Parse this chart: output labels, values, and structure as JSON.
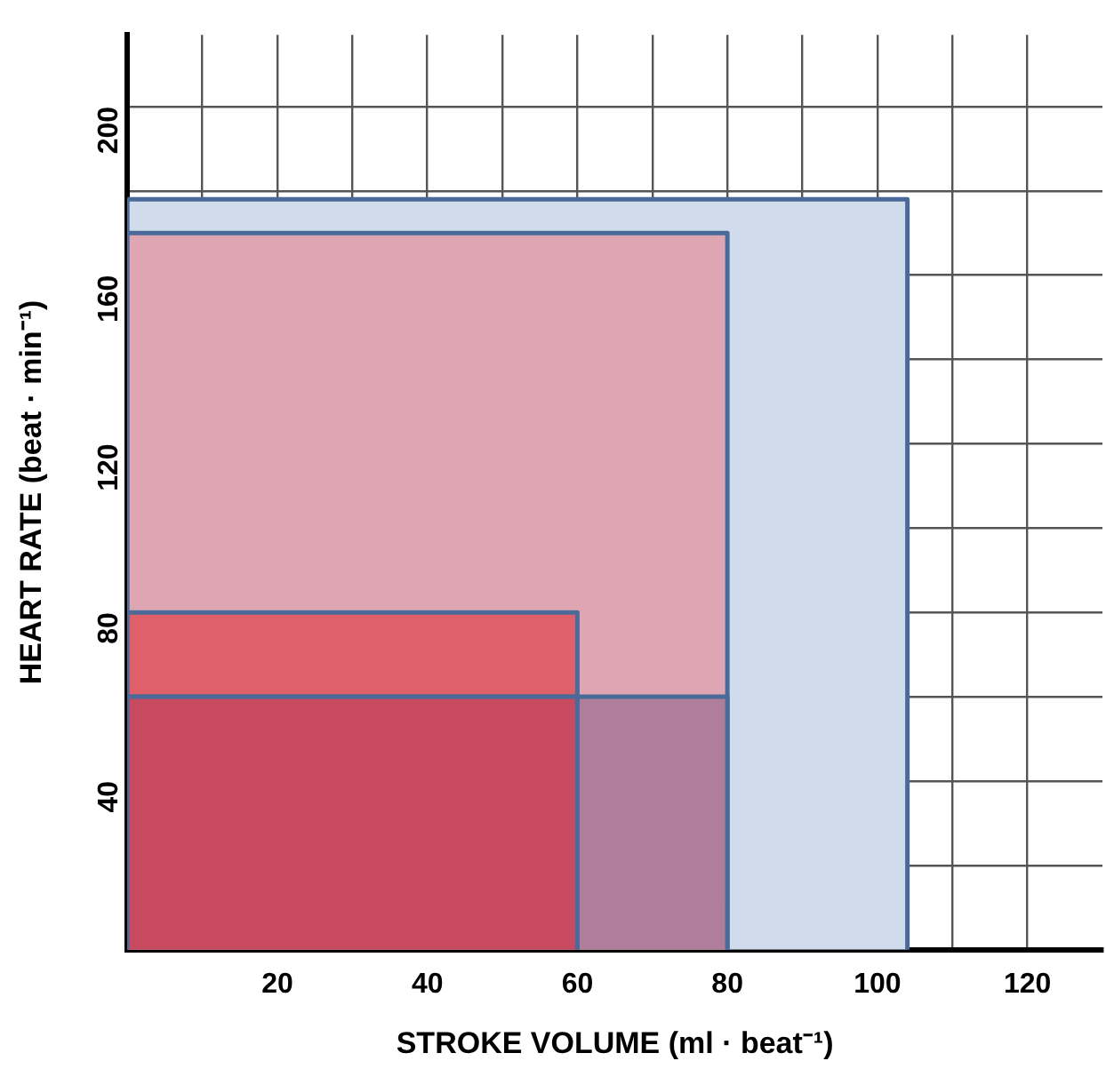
{
  "chart_data": {
    "type": "area",
    "xlabel": "STROKE VOLUME (ml · beat⁻¹)",
    "ylabel": "HEART RATE (beat · min⁻¹)",
    "xlim": [
      0,
      130
    ],
    "ylim": [
      0,
      217
    ],
    "xticks": [
      {
        "value": 10,
        "label": null
      },
      20,
      {
        "value": 30,
        "label": null
      },
      40,
      {
        "value": 50,
        "label": null
      },
      60,
      {
        "value": 70,
        "label": null
      },
      80,
      {
        "value": 90,
        "label": null
      },
      100,
      {
        "value": 110,
        "label": null
      },
      120
    ],
    "yticks": [
      {
        "value": 20,
        "label": null
      },
      40,
      {
        "value": 60,
        "label": null
      },
      80,
      {
        "value": 100,
        "label": null
      },
      120,
      {
        "value": 140,
        "label": null
      },
      160,
      {
        "value": 180,
        "label": null
      },
      200
    ],
    "grid": true,
    "legend": false,
    "line_style": "solid",
    "marker": "none",
    "series": [
      {
        "color": "#d0dcec",
        "x": [
          0,
          0,
          104,
          104
        ],
        "values": [
          0,
          178,
          178,
          0
        ]
      },
      {
        "color": "#dea6b2",
        "x": [
          0,
          0,
          80,
          80
        ],
        "values": [
          0,
          170,
          170,
          0
        ]
      },
      {
        "color": "#e0606a",
        "x": [
          0,
          0,
          60,
          60
        ],
        "values": [
          0,
          80,
          80,
          0
        ]
      },
      {
        "color": "#ae7e9a",
        "x": [
          0,
          0,
          80,
          80
        ],
        "values": [
          0,
          60,
          60,
          0
        ]
      },
      {
        "color": "#c84a60",
        "x": [
          0,
          0,
          60,
          60
        ],
        "values": [
          0,
          60,
          60,
          0
        ]
      }
    ]
  }
}
